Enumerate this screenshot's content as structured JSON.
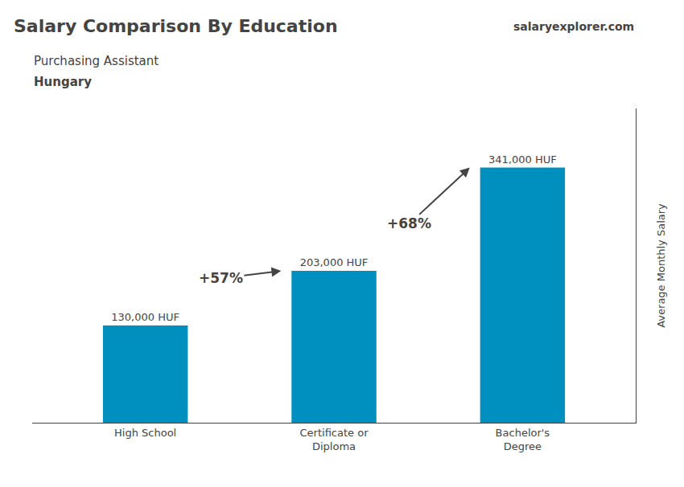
{
  "chart_data": {
    "type": "bar",
    "title": "Salary Comparison By Education",
    "subtitle": "Purchasing Assistant",
    "ylabel": "Average Monthly Salary",
    "categories": [
      "High School",
      "Certificate or\nDiploma",
      "Bachelor's\nDegree"
    ],
    "values": [
      130000,
      203000,
      341000
    ],
    "value_labels": [
      "130,000 HUF",
      "203,000 HUF",
      "341,000 HUF"
    ],
    "data_labels": true,
    "color": "#0090c0",
    "ylim": [
      0,
      420000
    ],
    "grid": false,
    "tick_labels": "x",
    "annotations": [
      {
        "text": "Hungary"
      },
      {
        "text": "salary"
      },
      {
        "text": "explorer"
      },
      {
        "text": ".com"
      },
      {
        "text": "+57%",
        "from": "High School",
        "to": "Certificate or\nDiploma"
      },
      {
        "text": "+68%",
        "from": "Certificate or\nDiploma",
        "to": "Bachelor's\nDegree"
      }
    ]
  }
}
